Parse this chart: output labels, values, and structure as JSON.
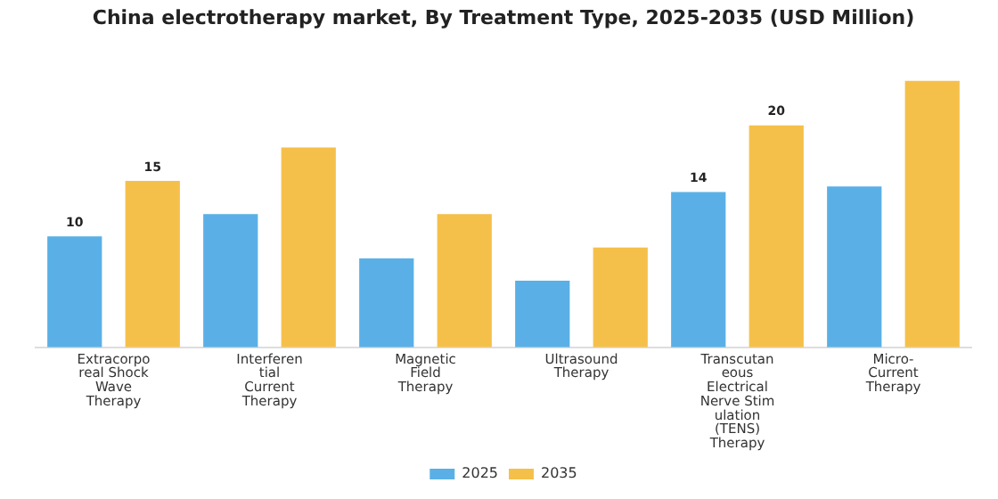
{
  "chart_data": {
    "type": "bar",
    "title": "China electrotherapy market, By Treatment Type, 2025-2035 (USD Million)",
    "categories": [
      "Extracorporeal Shock Wave Therapy",
      "Interferential Current Therapy",
      "Magnetic Field Therapy",
      "Ultrasound Therapy",
      "Transcutaneous Electrical Nerve Stimulation (TENS) Therapy",
      "Micro-Current Therapy"
    ],
    "series": [
      {
        "name": "2025",
        "color": "#5ab0e6",
        "values": [
          10,
          12,
          8,
          6,
          14,
          14.5
        ],
        "value_labels": [
          "10",
          null,
          null,
          null,
          "14",
          null
        ]
      },
      {
        "name": "2035",
        "color": "#f5c04a",
        "values": [
          15,
          18,
          12,
          9,
          20,
          24
        ],
        "value_labels": [
          "15",
          null,
          null,
          null,
          "20",
          null
        ]
      }
    ],
    "legend": "bottom",
    "grid": false
  }
}
